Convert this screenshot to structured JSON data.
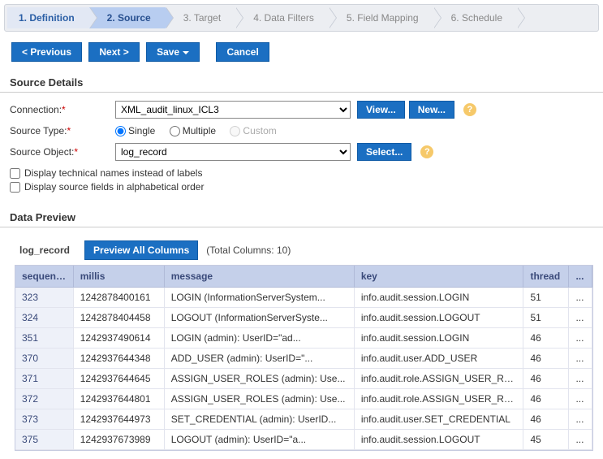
{
  "wizard": {
    "steps": [
      {
        "label": "1. Definition",
        "state": "done"
      },
      {
        "label": "2. Source",
        "state": "active"
      },
      {
        "label": "3. Target",
        "state": ""
      },
      {
        "label": "4. Data Filters",
        "state": ""
      },
      {
        "label": "5. Field Mapping",
        "state": ""
      },
      {
        "label": "6. Schedule",
        "state": ""
      }
    ]
  },
  "toolbar": {
    "previous": "< Previous",
    "next": "Next >",
    "save": "Save",
    "cancel": "Cancel"
  },
  "sourceDetails": {
    "title": "Source Details",
    "connectionLabel": "Connection:",
    "connectionValue": "XML_audit_linux_ICL3",
    "viewBtn": "View...",
    "newBtn": "New...",
    "sourceTypeLabel": "Source Type:",
    "sourceTypeOptions": {
      "single": "Single",
      "multiple": "Multiple",
      "custom": "Custom"
    },
    "sourceTypeSelected": "single",
    "sourceObjectLabel": "Source Object:",
    "sourceObjectValue": "log_record",
    "selectBtn": "Select...",
    "chkTechnical": "Display technical names instead of labels",
    "chkAlpha": "Display source fields in alphabetical order"
  },
  "dataPreview": {
    "title": "Data Preview",
    "tabLabel": "log_record",
    "previewAllBtn": "Preview All Columns",
    "totalColumns": "(Total Columns: 10)",
    "columns": [
      "sequence",
      "millis",
      "message",
      "key",
      "thread",
      "..."
    ],
    "colWidths": [
      "70px",
      "110px",
      "230px",
      "205px",
      "55px",
      "28px"
    ],
    "rows": [
      [
        "323",
        "1242878400161",
        "LOGIN (InformationServerSystem...",
        "info.audit.session.LOGIN",
        "51",
        "..."
      ],
      [
        "324",
        "1242878404458",
        "LOGOUT (InformationServerSyste...",
        "info.audit.session.LOGOUT",
        "51",
        "..."
      ],
      [
        "351",
        "1242937490614",
        "LOGIN (admin): UserID=\"ad...",
        "info.audit.session.LOGIN",
        "46",
        "..."
      ],
      [
        "370",
        "1242937644348",
        "ADD_USER (admin): UserID=\"...",
        "info.audit.user.ADD_USER",
        "46",
        "..."
      ],
      [
        "371",
        "1242937644645",
        "ASSIGN_USER_ROLES (admin): Use...",
        "info.audit.role.ASSIGN_USER_RO...",
        "46",
        "..."
      ],
      [
        "372",
        "1242937644801",
        "ASSIGN_USER_ROLES (admin): Use...",
        "info.audit.role.ASSIGN_USER_RO...",
        "46",
        "..."
      ],
      [
        "373",
        "1242937644973",
        "SET_CREDENTIAL (admin): UserID...",
        "info.audit.user.SET_CREDENTIAL",
        "46",
        "..."
      ],
      [
        "375",
        "1242937673989",
        "LOGOUT (admin): UserID=\"a...",
        "info.audit.session.LOGOUT",
        "45",
        "..."
      ]
    ]
  },
  "colors": {
    "primary": "#1b6fc2",
    "stepActive": "#b8cdf0",
    "stepDone": "#e2e8f4",
    "gridHeader": "#c5d0ea"
  }
}
